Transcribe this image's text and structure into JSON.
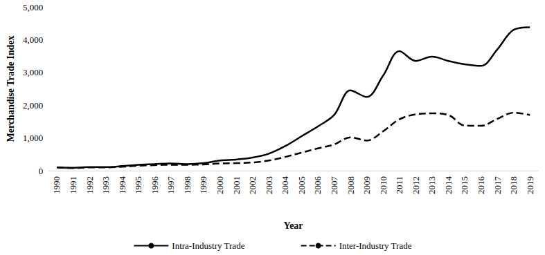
{
  "chart_data": {
    "type": "line",
    "x_label": "Year",
    "y_label": "Merchandise Trade Index",
    "categories": [
      "1990",
      "1991",
      "1992",
      "1993",
      "1994",
      "1995",
      "1996",
      "1997",
      "1998",
      "1999",
      "2000",
      "2001",
      "2002",
      "2003",
      "2004",
      "2005",
      "2006",
      "2007",
      "2008",
      "2009",
      "2010",
      "2011",
      "2012",
      "2013",
      "2014",
      "2015",
      "2016",
      "2017",
      "2018",
      "2019"
    ],
    "series": [
      {
        "name": "Intra-Industry Trade",
        "color": "#000000",
        "line_style": "solid",
        "marker": "none",
        "values": [
          100,
          90,
          110,
          110,
          140,
          180,
          200,
          220,
          200,
          230,
          310,
          340,
          400,
          520,
          750,
          1050,
          1350,
          1700,
          2450,
          2250,
          2900,
          3650,
          3350,
          3480,
          3350,
          3250,
          3200,
          3700,
          4300,
          4380
        ]
      },
      {
        "name": "Inter-Industry Trade",
        "color": "#000000",
        "line_style": "dashed",
        "marker": "none",
        "values": [
          100,
          80,
          100,
          100,
          120,
          150,
          170,
          180,
          180,
          190,
          220,
          230,
          250,
          310,
          420,
          550,
          680,
          800,
          1020,
          920,
          1200,
          1570,
          1720,
          1750,
          1700,
          1380,
          1370,
          1580,
          1770,
          1700
        ]
      }
    ],
    "ylim": [
      0,
      5000
    ],
    "yticks": [
      0,
      1000,
      2000,
      3000,
      4000,
      5000
    ],
    "grid": false,
    "legend": "bottom"
  }
}
